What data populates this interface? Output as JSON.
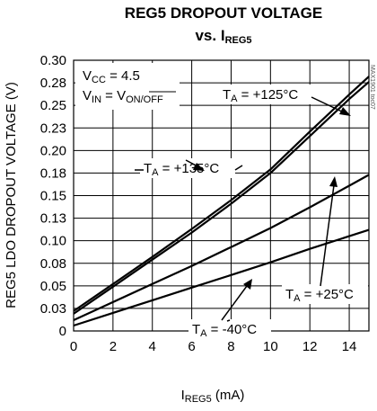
{
  "chart_data": {
    "type": "line",
    "title": "REG5 DROPOUT VOLTAGE",
    "subtitle": "vs. I_REG5",
    "xlabel": "I_REG5 (mA)",
    "ylabel": "REG5 LDO DROPOUT VOLTAGE (V)",
    "xlim": [
      0,
      15
    ],
    "ylim": [
      0,
      0.3
    ],
    "x_ticks": [
      "0",
      "2",
      "4",
      "6",
      "8",
      "10",
      "12",
      "14"
    ],
    "y_ticks": [
      "0",
      "0.03",
      "0.05",
      "0.08",
      "0.10",
      "0.13",
      "0.15",
      "0.18",
      "0.20",
      "0.23",
      "0.25",
      "0.28",
      "0.30"
    ],
    "grid": true,
    "conditions": [
      "V_CC = 4.5",
      "V_IN = V_ON/OFF"
    ],
    "series": [
      {
        "name": "T_A = +135°C",
        "x": [
          0,
          2,
          4,
          6,
          8,
          10,
          12,
          14,
          15
        ],
        "y": [
          0.022,
          0.052,
          0.082,
          0.113,
          0.145,
          0.179,
          0.221,
          0.262,
          0.282
        ]
      },
      {
        "name": "T_A = +125°C",
        "x": [
          0,
          2,
          4,
          6,
          8,
          10,
          12,
          14,
          15
        ],
        "y": [
          0.019,
          0.049,
          0.079,
          0.109,
          0.141,
          0.175,
          0.216,
          0.257,
          0.276
        ]
      },
      {
        "name": "T_A = +25°C",
        "x": [
          0,
          2,
          4,
          6,
          8,
          10,
          12,
          14,
          15
        ],
        "y": [
          0.012,
          0.032,
          0.052,
          0.072,
          0.093,
          0.114,
          0.137,
          0.161,
          0.173
        ]
      },
      {
        "name": "T_A = -40°C",
        "x": [
          0,
          2,
          4,
          6,
          8,
          10,
          12,
          14,
          15
        ],
        "y": [
          0.006,
          0.02,
          0.034,
          0.048,
          0.062,
          0.076,
          0.091,
          0.105,
          0.112
        ]
      }
    ]
  },
  "annotations": {
    "vcc_lhs": "V",
    "vcc_sub": "CC",
    "vcc_rhs": " = 4.5",
    "vin_lhs": "V",
    "vin_sub": "IN",
    "vin_eq": " = V",
    "vin_sub2": "ON/OFF",
    "t125": "T",
    "t125_sub": "A",
    "t125_rhs": " = +125°C",
    "t135": "T",
    "t135_sub": "A",
    "t135_rhs": " = +135°C",
    "t25": "T",
    "t25_sub": "A",
    "t25_rhs": " = +25°C",
    "tm40": "T",
    "tm40_sub": "A",
    "tm40_rhs": " = -40°C",
    "title_line1": "REG5 DROPOUT VOLTAGE",
    "title_vs": "vs. I",
    "title_sub": "REG5",
    "xlabel_main": "I",
    "xlabel_sub": "REG5",
    "xlabel_tail": " (mA)",
    "ylabel": "REG5 LDO DROPOUT VOLTAGE (V)",
    "figure_id": "MAX1901 toc07"
  }
}
